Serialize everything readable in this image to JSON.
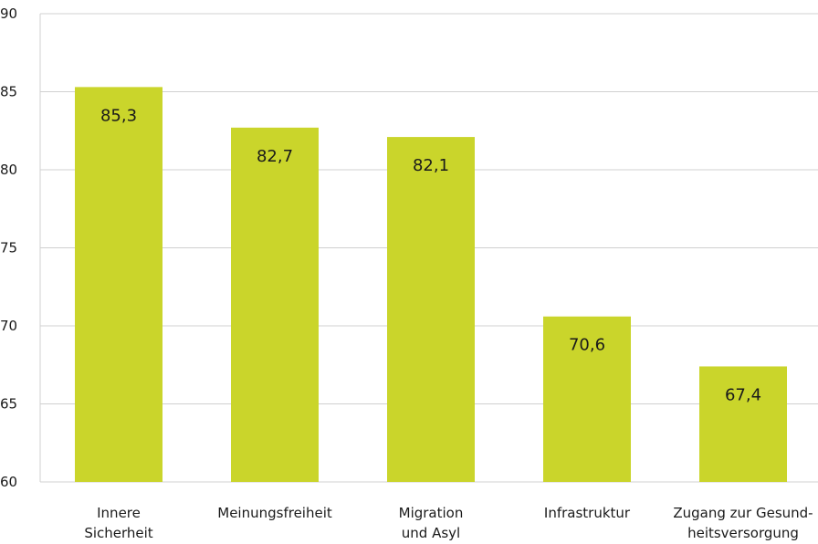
{
  "chart_data": {
    "type": "bar",
    "title": "",
    "xlabel": "",
    "ylabel": "",
    "ylim": [
      60,
      90
    ],
    "yticks": [
      "90",
      "85",
      "80",
      "75",
      "70",
      "65",
      "60"
    ],
    "grid": true,
    "bar_color": "#cad52b",
    "categories": [
      [
        "Innere",
        "Sicherheit"
      ],
      [
        "Meinungsfreiheit"
      ],
      [
        "Migration",
        "und Asyl"
      ],
      [
        "Infrastruktur"
      ],
      [
        "Zugang zur Gesund-",
        "heitsversorgung"
      ]
    ],
    "values": [
      85.3,
      82.7,
      82.1,
      70.6,
      67.4
    ],
    "value_labels": [
      "85,3",
      "82,7",
      "82,1",
      "70,6",
      "67,4"
    ]
  }
}
